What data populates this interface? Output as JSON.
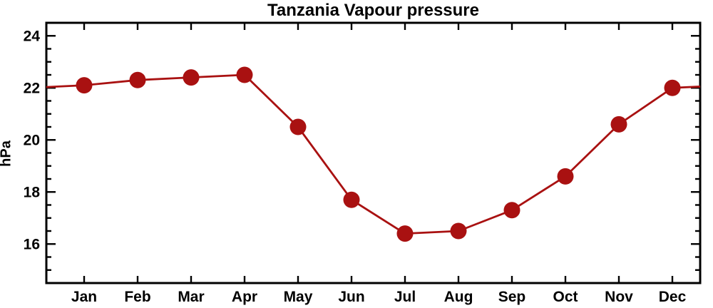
{
  "title": "Tanzania Vapour pressure",
  "chart_data": {
    "type": "line",
    "title": "Tanzania Vapour pressure",
    "ylabel": "hPa",
    "xlabel": "",
    "categories": [
      "Jan",
      "Feb",
      "Mar",
      "Apr",
      "May",
      "Jun",
      "Jul",
      "Aug",
      "Sep",
      "Oct",
      "Nov",
      "Dec"
    ],
    "values": [
      22.1,
      22.3,
      22.4,
      22.5,
      20.5,
      17.7,
      16.4,
      16.5,
      17.3,
      18.6,
      20.6,
      22.0
    ],
    "ylim": [
      14.5,
      24.5
    ],
    "y_major_ticks": [
      16,
      18,
      20,
      22,
      24
    ],
    "y_minor_step": 0.5,
    "edge_extension": {
      "left_value": 22.03,
      "right_value": 22.05
    },
    "grid": false,
    "legend": "none",
    "line_color": "#a91111",
    "marker": "filled-circle",
    "marker_color": "#a91111",
    "axis_color": "#000000",
    "background_color": "#ffffff"
  }
}
